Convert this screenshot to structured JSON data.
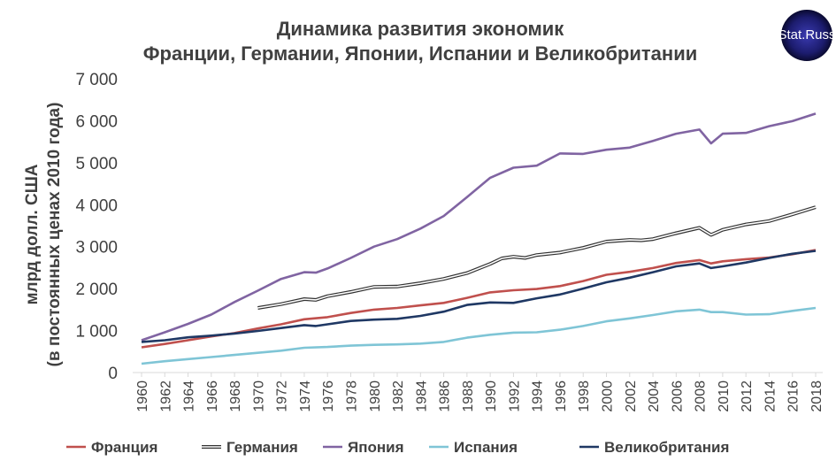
{
  "chart_data": {
    "type": "line",
    "title": [
      "Динамика развития экономик",
      "Франции, Германии, Японии, Испании и Великобритании"
    ],
    "ylabel": [
      "млрд долл. США",
      "(в постоянных ценах 2010 года)"
    ],
    "ylim": [
      0,
      7000
    ],
    "yticks": [
      0,
      1000,
      2000,
      3000,
      4000,
      5000,
      6000,
      7000
    ],
    "ytick_labels": [
      "0",
      "1 000",
      "2 000",
      "3 000",
      "4 000",
      "5 000",
      "6 000",
      "7 000"
    ],
    "xlim": [
      1960,
      2018
    ],
    "xtick_labels": [
      "1960",
      "1962",
      "1964",
      "1966",
      "1968",
      "1970",
      "1972",
      "1974",
      "1976",
      "1978",
      "1980",
      "1982",
      "1984",
      "1986",
      "1988",
      "1990",
      "1992",
      "1994",
      "1996",
      "1998",
      "2000",
      "2002",
      "2004",
      "2006",
      "2008",
      "2010",
      "2012",
      "2014",
      "2016",
      "2018"
    ],
    "grid": false,
    "legend_position": "bottom",
    "series": [
      {
        "name": "Франция",
        "color": "#c0504d",
        "style": "solid",
        "x": [
          1960,
          1962,
          1964,
          1966,
          1968,
          1970,
          1972,
          1974,
          1976,
          1978,
          1980,
          1982,
          1984,
          1986,
          1988,
          1990,
          1992,
          1994,
          1996,
          1998,
          2000,
          2002,
          2004,
          2006,
          2008,
          2009,
          2010,
          2012,
          2014,
          2016,
          2018
        ],
        "values": [
          600,
          680,
          770,
          860,
          940,
          1050,
          1150,
          1270,
          1320,
          1420,
          1500,
          1540,
          1600,
          1660,
          1780,
          1910,
          1960,
          1990,
          2060,
          2180,
          2330,
          2400,
          2490,
          2610,
          2680,
          2600,
          2650,
          2700,
          2740,
          2820,
          2920
        ]
      },
      {
        "name": "Германия",
        "color": "#333333",
        "style": "double",
        "x": [
          1970,
          1972,
          1974,
          1975,
          1976,
          1978,
          1980,
          1982,
          1984,
          1986,
          1988,
          1990,
          1991,
          1992,
          1993,
          1994,
          1996,
          1998,
          2000,
          2002,
          2003,
          2004,
          2006,
          2008,
          2009,
          2010,
          2012,
          2014,
          2016,
          2018
        ],
        "values": [
          1540,
          1630,
          1750,
          1730,
          1820,
          1920,
          2040,
          2050,
          2130,
          2230,
          2370,
          2590,
          2720,
          2760,
          2730,
          2800,
          2860,
          2970,
          3120,
          3160,
          3150,
          3180,
          3320,
          3450,
          3280,
          3400,
          3530,
          3610,
          3770,
          3940
        ]
      },
      {
        "name": "Япония",
        "color": "#8064a2",
        "style": "solid",
        "x": [
          1960,
          1962,
          1964,
          1966,
          1968,
          1970,
          1972,
          1974,
          1975,
          1976,
          1978,
          1980,
          1982,
          1984,
          1986,
          1988,
          1990,
          1992,
          1994,
          1996,
          1998,
          2000,
          2002,
          2004,
          2006,
          2008,
          2009,
          2010,
          2012,
          2014,
          2016,
          2018
        ],
        "values": [
          770,
          960,
          1160,
          1380,
          1680,
          1950,
          2230,
          2390,
          2380,
          2480,
          2730,
          3000,
          3180,
          3430,
          3730,
          4180,
          4640,
          4880,
          4930,
          5220,
          5210,
          5310,
          5360,
          5520,
          5690,
          5790,
          5460,
          5690,
          5710,
          5870,
          5990,
          6170
        ]
      },
      {
        "name": "Испания",
        "color": "#7fc5d6",
        "style": "solid",
        "x": [
          1960,
          1962,
          1964,
          1966,
          1968,
          1970,
          1972,
          1974,
          1976,
          1978,
          1980,
          1982,
          1984,
          1986,
          1988,
          1990,
          1992,
          1994,
          1996,
          1998,
          2000,
          2002,
          2004,
          2006,
          2008,
          2009,
          2010,
          2012,
          2014,
          2016,
          2018
        ],
        "values": [
          210,
          270,
          320,
          370,
          420,
          470,
          520,
          590,
          610,
          640,
          660,
          670,
          690,
          730,
          830,
          900,
          950,
          960,
          1020,
          1110,
          1220,
          1290,
          1370,
          1460,
          1500,
          1440,
          1440,
          1380,
          1390,
          1470,
          1540
        ]
      },
      {
        "name": "Великобритания",
        "color": "#1f3864",
        "style": "solid",
        "x": [
          1960,
          1962,
          1964,
          1966,
          1968,
          1970,
          1972,
          1974,
          1975,
          1976,
          1978,
          1980,
          1982,
          1984,
          1986,
          1988,
          1990,
          1992,
          1994,
          1996,
          1998,
          2000,
          2002,
          2004,
          2006,
          2008,
          2009,
          2010,
          2012,
          2014,
          2016,
          2018
        ],
        "values": [
          730,
          770,
          840,
          880,
          930,
          990,
          1060,
          1130,
          1110,
          1150,
          1230,
          1260,
          1280,
          1350,
          1450,
          1610,
          1670,
          1660,
          1770,
          1860,
          2000,
          2150,
          2260,
          2390,
          2530,
          2600,
          2490,
          2530,
          2620,
          2730,
          2830,
          2900
        ]
      }
    ]
  },
  "logo": {
    "text": "Stat.Russ"
  }
}
